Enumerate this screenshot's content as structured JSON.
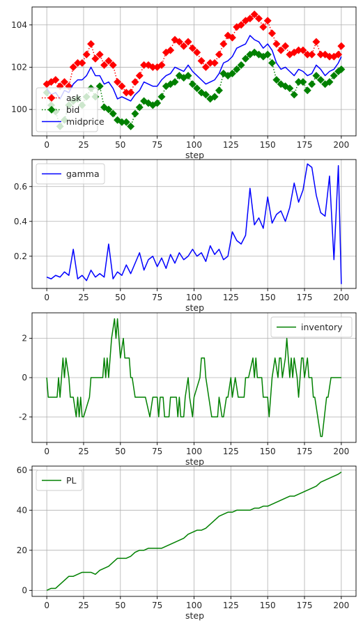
{
  "chart_data": [
    {
      "type": "line",
      "xlabel": "step",
      "ylabel": "",
      "xlim": [
        -10,
        210
      ],
      "ylim": [
        98.75,
        104.85
      ],
      "xticks": [
        0,
        25,
        50,
        75,
        100,
        125,
        150,
        175,
        200
      ],
      "yticks": [
        100,
        102,
        104
      ],
      "grid": true,
      "legend": "lower-left",
      "series": [
        {
          "name": "ask",
          "color": "#ff0000",
          "style": "dotted-diamond",
          "x": [
            0,
            3,
            6,
            9,
            12,
            15,
            18,
            21,
            24,
            27,
            30,
            33,
            36,
            39,
            42,
            45,
            48,
            51,
            54,
            57,
            60,
            63,
            66,
            69,
            72,
            75,
            78,
            81,
            84,
            87,
            90,
            93,
            96,
            99,
            102,
            105,
            108,
            111,
            114,
            117,
            120,
            123,
            126,
            129,
            132,
            135,
            138,
            141,
            144,
            147,
            150,
            153,
            156,
            159,
            162,
            165,
            168,
            171,
            174,
            177,
            180,
            183,
            186,
            189,
            192,
            195,
            198,
            200
          ],
          "y": [
            101.2,
            101.3,
            101.4,
            101.1,
            101.3,
            101.1,
            102.0,
            102.2,
            102.2,
            102.6,
            103.1,
            102.4,
            102.6,
            102.1,
            102.3,
            102.1,
            101.3,
            101.1,
            100.8,
            100.8,
            101.3,
            101.6,
            102.1,
            102.1,
            102.0,
            102.0,
            102.1,
            102.7,
            102.8,
            103.3,
            103.2,
            103.0,
            103.2,
            102.9,
            102.7,
            102.3,
            102.0,
            102.2,
            102.2,
            102.6,
            103.1,
            103.5,
            103.4,
            103.9,
            104.0,
            104.2,
            104.3,
            104.5,
            104.3,
            103.9,
            104.2,
            103.6,
            103.1,
            102.8,
            103.0,
            102.6,
            102.7,
            102.8,
            102.8,
            102.6,
            102.6,
            103.2,
            102.6,
            102.6,
            102.5,
            102.5,
            102.6,
            103.0
          ]
        },
        {
          "name": "bid",
          "color": "#008000",
          "style": "dotted-diamond",
          "x": [
            0,
            3,
            6,
            9,
            12,
            15,
            18,
            21,
            24,
            27,
            30,
            33,
            36,
            39,
            42,
            45,
            48,
            51,
            54,
            57,
            60,
            63,
            66,
            69,
            72,
            75,
            78,
            81,
            84,
            87,
            90,
            93,
            96,
            99,
            102,
            105,
            108,
            111,
            114,
            117,
            120,
            123,
            126,
            129,
            132,
            135,
            138,
            141,
            144,
            147,
            150,
            153,
            156,
            159,
            162,
            165,
            168,
            171,
            174,
            177,
            180,
            183,
            186,
            189,
            192,
            195,
            198,
            200
          ],
          "y": [
            100.8,
            100.2,
            99.9,
            99.2,
            99.5,
            100.2,
            100.4,
            100.5,
            100.2,
            100.6,
            101.0,
            100.6,
            101.1,
            100.1,
            100.0,
            99.8,
            99.5,
            99.4,
            99.4,
            99.2,
            99.8,
            100.1,
            100.4,
            100.3,
            100.2,
            100.3,
            100.6,
            101.1,
            101.2,
            101.3,
            101.6,
            101.5,
            101.6,
            101.2,
            101.0,
            100.8,
            100.7,
            100.5,
            100.6,
            100.9,
            101.7,
            101.6,
            101.7,
            101.9,
            102.1,
            102.4,
            102.6,
            102.7,
            102.6,
            102.5,
            102.6,
            102.2,
            101.4,
            101.2,
            101.1,
            101.0,
            100.7,
            101.3,
            101.3,
            100.9,
            101.2,
            101.6,
            101.4,
            101.2,
            101.3,
            101.6,
            101.8,
            101.9
          ]
        },
        {
          "name": "midprice",
          "color": "#0000ff",
          "style": "solid",
          "x": [
            0,
            3,
            6,
            9,
            12,
            15,
            18,
            21,
            24,
            27,
            30,
            33,
            36,
            39,
            42,
            45,
            48,
            51,
            54,
            57,
            60,
            63,
            66,
            69,
            72,
            75,
            78,
            81,
            84,
            87,
            90,
            93,
            96,
            99,
            102,
            105,
            108,
            111,
            114,
            117,
            120,
            123,
            126,
            129,
            132,
            135,
            138,
            141,
            144,
            147,
            150,
            153,
            156,
            159,
            162,
            165,
            168,
            171,
            174,
            177,
            180,
            183,
            186,
            189,
            192,
            195,
            198,
            200
          ],
          "y": [
            101.0,
            100.7,
            100.8,
            100.5,
            100.9,
            100.8,
            101.2,
            101.4,
            101.4,
            101.6,
            102.0,
            101.6,
            101.6,
            101.2,
            101.3,
            101.0,
            100.5,
            100.6,
            100.5,
            100.4,
            100.7,
            100.9,
            101.3,
            101.2,
            101.1,
            101.1,
            101.4,
            101.6,
            101.7,
            102.0,
            101.9,
            101.8,
            102.1,
            101.8,
            101.6,
            101.4,
            101.2,
            101.3,
            101.4,
            101.7,
            102.2,
            102.3,
            102.5,
            102.9,
            103.0,
            103.1,
            103.5,
            103.3,
            103.2,
            102.9,
            103.1,
            102.8,
            102.2,
            101.9,
            102.0,
            101.8,
            101.6,
            101.9,
            101.8,
            101.6,
            101.7,
            102.1,
            101.9,
            101.6,
            101.8,
            101.9,
            102.2,
            102.5
          ]
        }
      ]
    },
    {
      "type": "line",
      "xlabel": "step",
      "ylabel": "",
      "xlim": [
        -10,
        210
      ],
      "ylim": [
        0.015,
        0.755
      ],
      "xticks": [
        0,
        25,
        50,
        75,
        100,
        125,
        150,
        175,
        200
      ],
      "yticks": [
        0.2,
        0.4,
        0.6
      ],
      "ytick_labels": [
        "0.2",
        "0.4",
        "0.6"
      ],
      "grid": true,
      "legend": "upper-left",
      "series": [
        {
          "name": "gamma",
          "color": "#0000ff",
          "style": "solid",
          "x": [
            0,
            3,
            6,
            9,
            12,
            15,
            18,
            21,
            24,
            27,
            30,
            33,
            36,
            39,
            42,
            45,
            48,
            51,
            54,
            57,
            60,
            63,
            66,
            69,
            72,
            75,
            78,
            81,
            84,
            87,
            90,
            93,
            96,
            99,
            102,
            105,
            108,
            111,
            114,
            117,
            120,
            123,
            126,
            129,
            132,
            135,
            138,
            141,
            144,
            147,
            150,
            153,
            156,
            159,
            162,
            165,
            168,
            171,
            174,
            177,
            180,
            183,
            186,
            189,
            192,
            195,
            198,
            200
          ],
          "y": [
            0.08,
            0.07,
            0.09,
            0.08,
            0.11,
            0.09,
            0.24,
            0.07,
            0.09,
            0.06,
            0.12,
            0.08,
            0.1,
            0.08,
            0.27,
            0.07,
            0.11,
            0.09,
            0.15,
            0.1,
            0.16,
            0.22,
            0.12,
            0.18,
            0.2,
            0.14,
            0.19,
            0.13,
            0.21,
            0.16,
            0.22,
            0.18,
            0.2,
            0.24,
            0.2,
            0.22,
            0.17,
            0.26,
            0.21,
            0.24,
            0.18,
            0.2,
            0.34,
            0.29,
            0.27,
            0.32,
            0.59,
            0.38,
            0.42,
            0.36,
            0.54,
            0.39,
            0.44,
            0.46,
            0.4,
            0.48,
            0.62,
            0.51,
            0.58,
            0.73,
            0.71,
            0.55,
            0.45,
            0.43,
            0.66,
            0.18,
            0.72,
            0.04
          ]
        }
      ]
    },
    {
      "type": "line",
      "xlabel": "step",
      "ylabel": "",
      "xlim": [
        -10,
        210
      ],
      "ylim": [
        -3.3,
        3.3
      ],
      "xticks": [
        0,
        25,
        50,
        75,
        100,
        125,
        150,
        175,
        200
      ],
      "yticks": [
        -2,
        0,
        2
      ],
      "grid": true,
      "legend": "upper-right",
      "series": [
        {
          "name": "inventory",
          "color": "#008000",
          "style": "steps",
          "x": [
            0,
            1,
            7,
            8,
            9,
            10,
            11,
            12,
            13,
            15,
            16,
            18,
            20,
            21,
            22,
            23,
            24,
            25,
            29,
            30,
            38,
            39,
            40,
            41,
            42,
            43,
            44,
            46,
            47,
            48,
            49,
            50,
            52,
            53,
            56,
            57,
            58,
            60,
            65,
            67,
            70,
            72,
            74,
            75,
            76,
            77,
            79,
            80,
            83,
            84,
            88,
            89,
            90,
            91,
            93,
            94,
            96,
            97,
            99,
            100,
            104,
            105,
            106,
            107,
            108,
            110,
            112,
            116,
            117,
            119,
            120,
            122,
            123,
            125,
            126,
            128,
            130,
            134,
            135,
            136,
            137,
            140,
            141,
            142,
            143,
            146,
            147,
            150,
            151,
            152,
            153,
            155,
            157,
            158,
            159,
            160,
            162,
            163,
            164,
            165,
            166,
            167,
            168,
            170,
            171,
            172,
            173,
            174,
            175,
            177,
            178,
            180,
            181,
            182,
            184,
            186,
            187,
            190,
            191,
            193,
            195,
            197,
            198,
            199,
            200
          ],
          "y": [
            0,
            -1,
            -1,
            0,
            -1,
            0,
            1,
            0,
            1,
            0,
            -1,
            -1,
            -2,
            -1,
            -2,
            -1,
            -2,
            -2,
            -1,
            0,
            0,
            1,
            0,
            1,
            0,
            1,
            2,
            3,
            2,
            3,
            2,
            1,
            2,
            1,
            1,
            0,
            0,
            -1,
            -1,
            -1,
            -2,
            -1,
            -1,
            -1,
            -2,
            -1,
            -1,
            -2,
            -2,
            -1,
            -1,
            -2,
            -1,
            -2,
            -2,
            -1,
            0,
            -1,
            -2,
            -1,
            0,
            1,
            1,
            1,
            0,
            -1,
            -2,
            -2,
            -1,
            -2,
            -2,
            -1,
            -1,
            0,
            -1,
            0,
            -1,
            -1,
            0,
            0,
            0,
            1,
            0,
            1,
            0,
            0,
            -1,
            -1,
            -2,
            -1,
            0,
            1,
            0,
            1,
            1,
            0,
            1,
            2,
            1,
            0,
            1,
            0,
            1,
            0,
            -1,
            0,
            1,
            1,
            0,
            1,
            0,
            0,
            -1,
            -1,
            -2,
            -3,
            -3,
            -1,
            -1,
            0,
            0,
            0,
            0,
            0,
            0
          ]
        }
      ]
    },
    {
      "type": "line",
      "xlabel": "step",
      "ylabel": "",
      "xlim": [
        -10,
        210
      ],
      "ylim": [
        -3,
        62
      ],
      "xticks": [
        0,
        25,
        50,
        75,
        100,
        125,
        150,
        175,
        200
      ],
      "yticks": [
        0,
        20,
        40,
        60
      ],
      "grid": true,
      "legend": "upper-left",
      "series": [
        {
          "name": "PL",
          "color": "#008000",
          "style": "solid",
          "x": [
            0,
            3,
            6,
            9,
            12,
            15,
            18,
            21,
            24,
            27,
            30,
            33,
            36,
            39,
            42,
            45,
            48,
            51,
            54,
            57,
            60,
            63,
            66,
            69,
            72,
            75,
            78,
            81,
            84,
            87,
            90,
            93,
            96,
            99,
            102,
            105,
            108,
            111,
            114,
            117,
            120,
            123,
            126,
            129,
            132,
            135,
            138,
            141,
            144,
            147,
            150,
            153,
            156,
            159,
            162,
            165,
            168,
            171,
            174,
            177,
            180,
            183,
            186,
            189,
            192,
            195,
            198,
            200
          ],
          "y": [
            0,
            1,
            1,
            3,
            5,
            7,
            7,
            8,
            9,
            9,
            9,
            8,
            10,
            11,
            12,
            14,
            16,
            16,
            16,
            17,
            19,
            20,
            20,
            21,
            21,
            21,
            21,
            22,
            23,
            24,
            25,
            26,
            28,
            29,
            30,
            30,
            31,
            33,
            35,
            37,
            38,
            39,
            39,
            40,
            40,
            40,
            40,
            41,
            41,
            42,
            42,
            43,
            44,
            45,
            46,
            47,
            47,
            48,
            49,
            50,
            51,
            52,
            54,
            55,
            56,
            57,
            58,
            59
          ]
        }
      ]
    }
  ]
}
